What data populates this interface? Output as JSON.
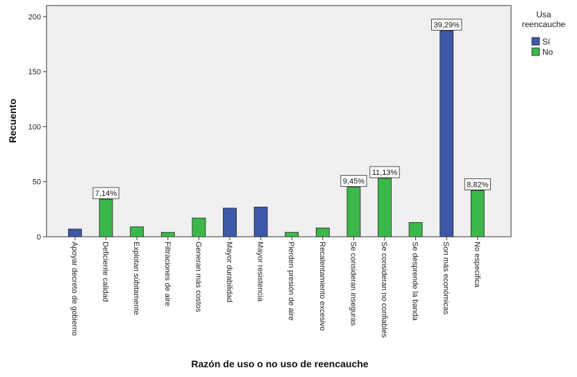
{
  "chart_data": {
    "type": "bar",
    "title": "",
    "xlabel": "Razón de uso o no uso de reencauche",
    "ylabel": "Recuento",
    "ylim": [
      0,
      210
    ],
    "yticks": [
      0,
      50,
      100,
      150,
      200
    ],
    "grid": false,
    "legend": {
      "title_line1": "Usa",
      "title_line2": "reencauche",
      "placement": "right",
      "items": [
        {
          "name": "Sí",
          "color": "#3d58a6"
        },
        {
          "name": "No",
          "color": "#3cb84a"
        }
      ]
    },
    "plot_background": "#f0f0f0",
    "categories": [
      "Apoyar decreto de gobierno",
      "Deficiente calidad",
      "Explotan súbitamente",
      "Filtraciones de aire",
      "Generan más costos",
      "Mayor durabilidad",
      "Mayor resistencia",
      "Pierden presión de aire",
      "Recalentamiento excesivo",
      "Se consideran inseguras",
      "Se consideran no confiables",
      "Se desprende la banda",
      "Son más económicas",
      "No especifica"
    ],
    "series": [
      {
        "name": "Sí",
        "color": "#3d58a6",
        "values": [
          7,
          0,
          0,
          0,
          0,
          26,
          27,
          0,
          0,
          0,
          0,
          0,
          187,
          0
        ]
      },
      {
        "name": "No",
        "color": "#3cb84a",
        "values": [
          0,
          34,
          9,
          4,
          17,
          0,
          0,
          4,
          8,
          45,
          53,
          13,
          0,
          42
        ]
      }
    ],
    "annotations": [
      {
        "category": "Deficiente calidad",
        "series": "No",
        "text": "7,14%"
      },
      {
        "category": "Se consideran inseguras",
        "series": "No",
        "text": "9,45%"
      },
      {
        "category": "Se consideran no confiables",
        "series": "No",
        "text": "11,13%"
      },
      {
        "category": "Son más económicas",
        "series": "Sí",
        "text": "39,29%"
      },
      {
        "category": "No especifica",
        "series": "No",
        "text": "8,82%"
      }
    ]
  }
}
